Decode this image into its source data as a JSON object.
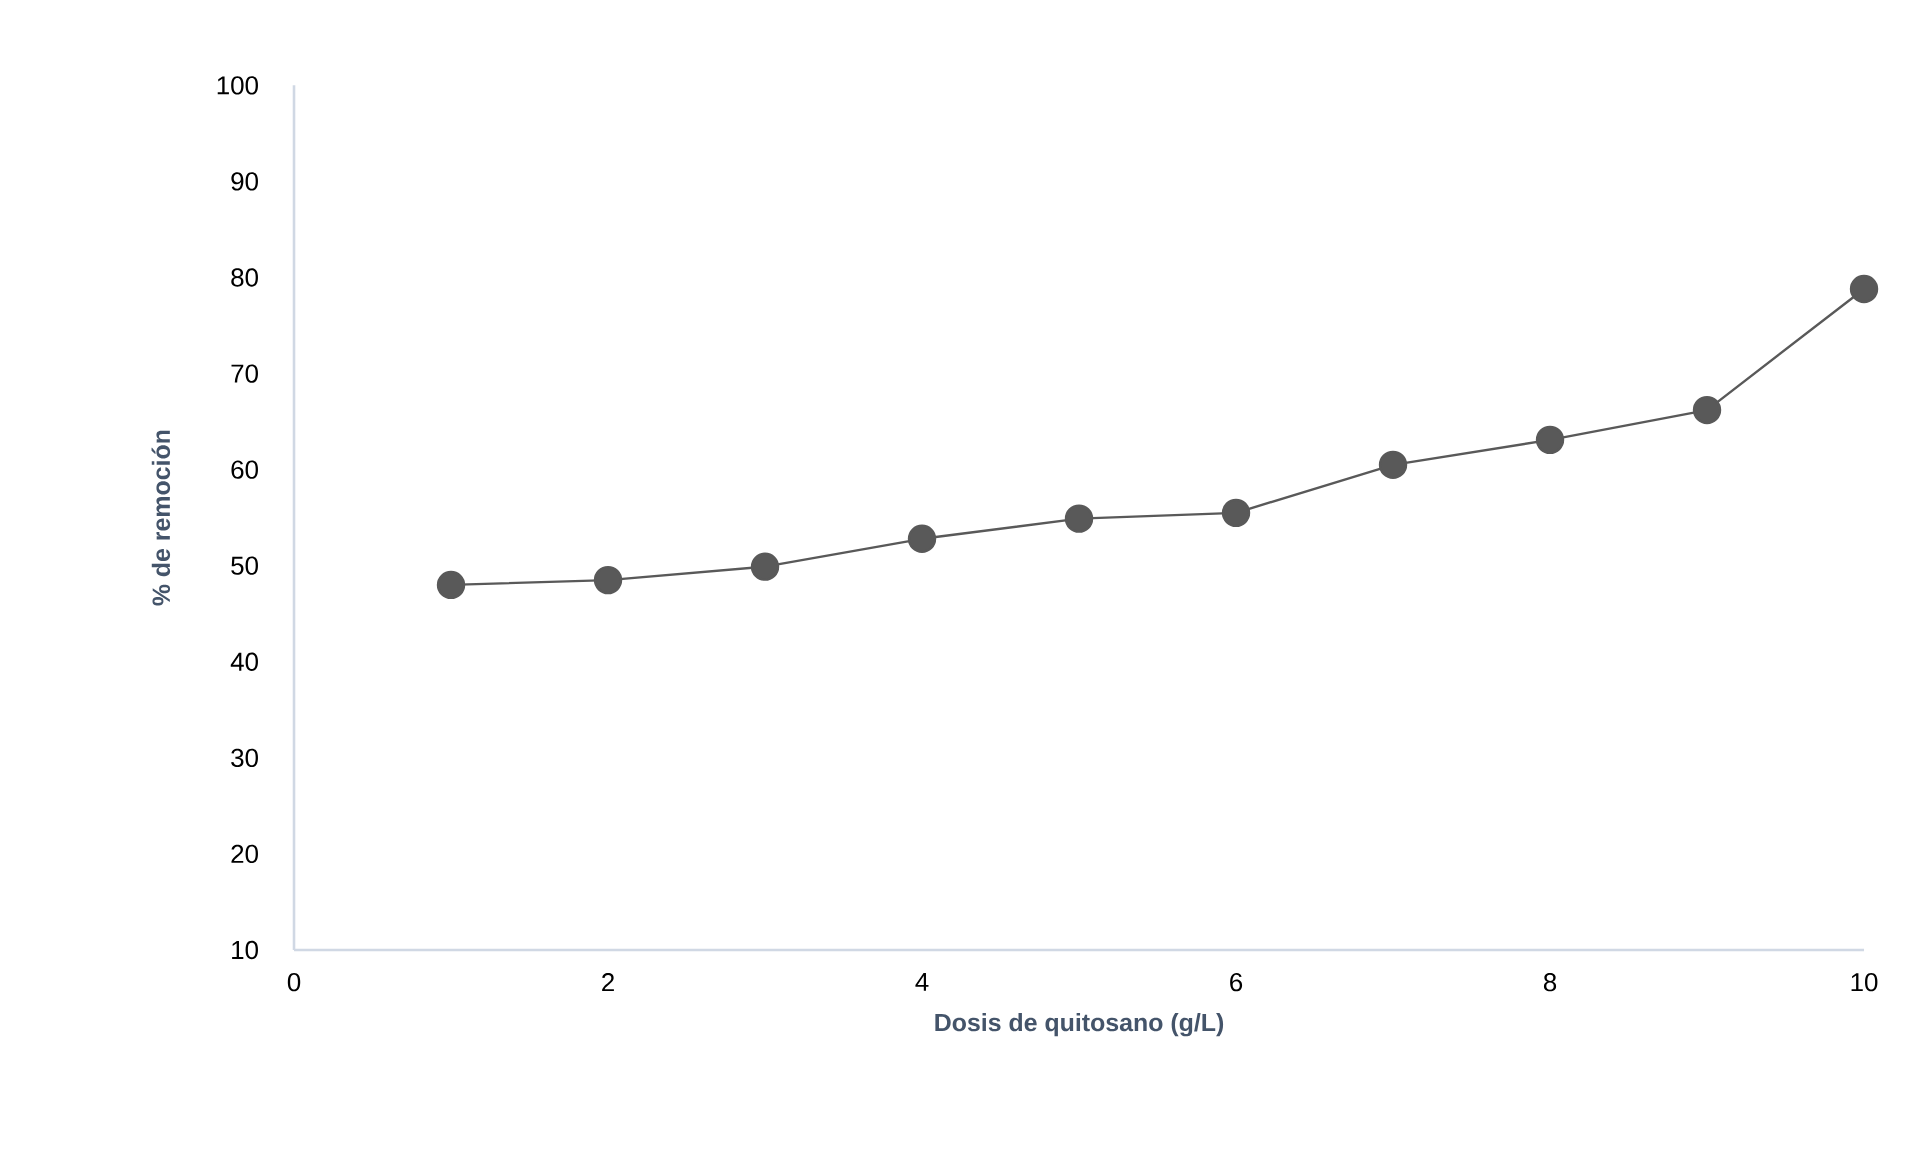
{
  "chart_data": {
    "type": "line",
    "xlabel": "Dosis de quitosano (g/L)",
    "ylabel": "% de remoción",
    "x": [
      1,
      2,
      3,
      4,
      5,
      6,
      7,
      8,
      9,
      10
    ],
    "series": [
      {
        "color": "#595959",
        "values": [
          48.0,
          48.5,
          49.9,
          52.8,
          54.9,
          55.5,
          60.5,
          63.1,
          66.2,
          78.8
        ]
      }
    ],
    "marker": "circle",
    "line_style": "solid",
    "grid": false,
    "xlim": [
      0,
      10
    ],
    "xticks": [
      0,
      2,
      4,
      6,
      8,
      10
    ],
    "ylim": [
      10,
      100
    ],
    "yticks": [
      10,
      20,
      30,
      40,
      50,
      60,
      70,
      80,
      90,
      100
    ]
  }
}
